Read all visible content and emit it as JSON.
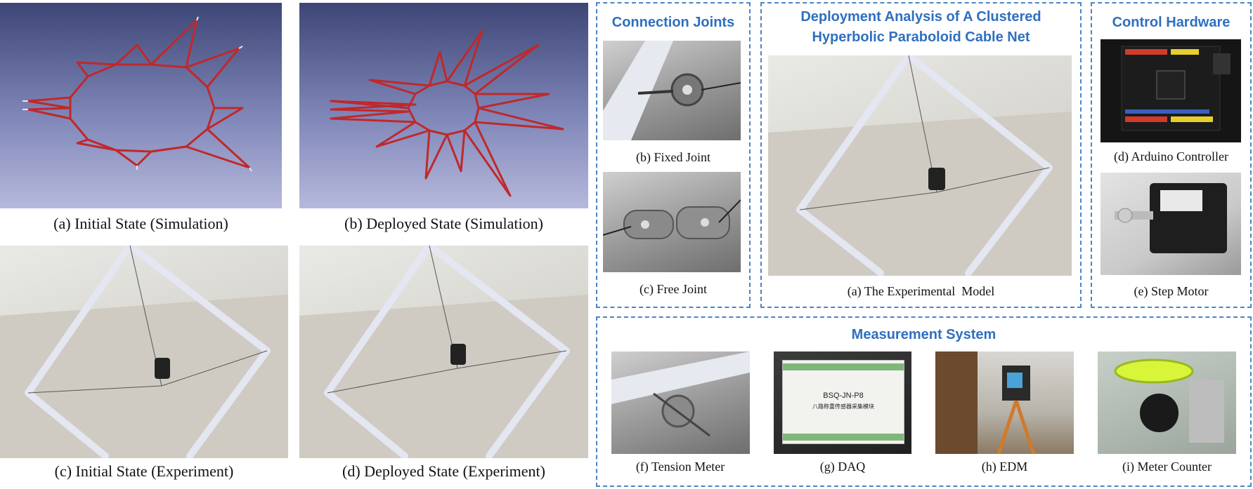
{
  "panels": {
    "a_sim_caption": "(a) Initial State (Simulation)",
    "b_sim_caption": "(b) Deployed State (Simulation)",
    "c_exp_caption": "(c) Initial State (Experiment)",
    "d_exp_caption": "(d) Deployed State (Experiment)"
  },
  "connection_joints": {
    "title": "Connection Joints",
    "fixed_caption": "(b) Fixed Joint",
    "free_caption": "(c) Free Joint"
  },
  "deployment": {
    "title_line1": "Deployment Analysis of A Clustered",
    "title_line2": "Hyperbolic Paraboloid Cable Net",
    "caption": "(a) The Experimental  Model"
  },
  "control": {
    "title": "Control Hardware",
    "arduino_caption": "(d) Arduino Controller",
    "motor_caption": "(e) Step Motor"
  },
  "measurement": {
    "title": "Measurement System",
    "tension_caption": "(f) Tension Meter",
    "daq_caption": "(g) DAQ",
    "edm_caption": "(h) EDM",
    "meter_caption": "(i) Meter Counter",
    "daq_label_line1": "BSQ-JN-P8",
    "daq_label_line2": "八路称重传感器采集模块"
  },
  "colors": {
    "accent_blue": "#2f6fbf",
    "dashed_border": "#4a86c5",
    "cable_red": "#c0282a"
  }
}
